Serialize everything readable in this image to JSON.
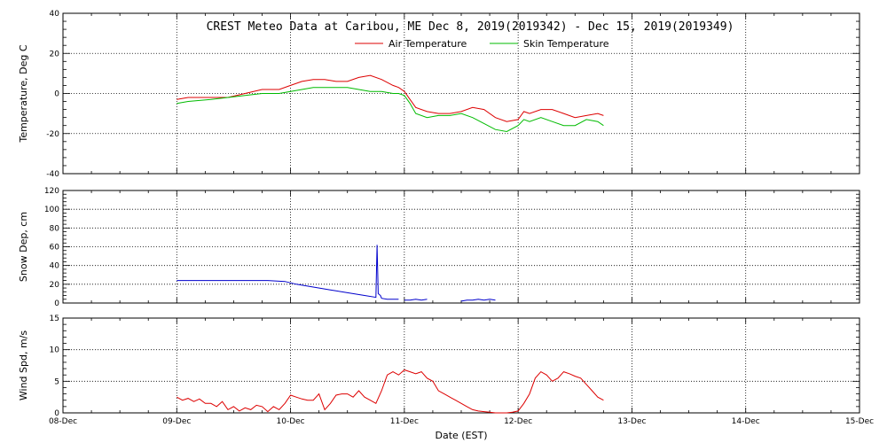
{
  "title": "CREST Meteo Data at Caribou, ME   Dec  8, 2019(2019342) - Dec 15, 2019(2019349)",
  "xlabel": "Date (EST)",
  "colors": {
    "air": "#dd0000",
    "skin": "#00bb00",
    "snow": "#0000cc",
    "wind": "#dd0000",
    "grid": "#000000"
  },
  "chart_data": [
    {
      "type": "line",
      "ylabel": "Temperature, Deg C",
      "ylim": [
        -40,
        40
      ],
      "yticks": [
        -40,
        -20,
        0,
        20,
        40
      ],
      "xlim": [
        8,
        15
      ],
      "xticks": [
        "08-Dec",
        "09-Dec",
        "10-Dec",
        "11-Dec",
        "12-Dec",
        "13-Dec",
        "14-Dec",
        "15-Dec"
      ],
      "grid": true,
      "legend": "top-center",
      "series": [
        {
          "name": "Air Temperature",
          "x": [
            9.0,
            9.1,
            9.3,
            9.45,
            9.6,
            9.75,
            9.9,
            10.0,
            10.1,
            10.2,
            10.3,
            10.4,
            10.5,
            10.6,
            10.7,
            10.8,
            10.9,
            10.95,
            11.0,
            11.05,
            11.1,
            11.2,
            11.3,
            11.4,
            11.5,
            11.6,
            11.7,
            11.8,
            11.9,
            12.0,
            12.05,
            12.1,
            12.2,
            12.3,
            12.4,
            12.5,
            12.6,
            12.7,
            12.75
          ],
          "y": [
            -3,
            -2,
            -2,
            -2,
            0,
            2,
            2,
            4,
            6,
            7,
            7,
            6,
            6,
            8,
            9,
            7,
            4,
            3,
            1,
            -3,
            -7,
            -9,
            -10,
            -10,
            -9,
            -7,
            -8,
            -12,
            -14,
            -13,
            -9,
            -10,
            -8,
            -8,
            -10,
            -12,
            -11,
            -10,
            -11
          ]
        },
        {
          "name": "Skin Temperature",
          "x": [
            9.0,
            9.1,
            9.3,
            9.45,
            9.6,
            9.75,
            9.9,
            10.0,
            10.1,
            10.2,
            10.3,
            10.4,
            10.5,
            10.6,
            10.7,
            10.8,
            10.9,
            10.95,
            11.0,
            11.05,
            11.1,
            11.2,
            11.3,
            11.4,
            11.5,
            11.6,
            11.7,
            11.8,
            11.9,
            12.0,
            12.05,
            12.1,
            12.2,
            12.3,
            12.4,
            12.5,
            12.6,
            12.7,
            12.75
          ],
          "y": [
            -5,
            -4,
            -3,
            -2,
            -1,
            0,
            0,
            1,
            2,
            3,
            3,
            3,
            3,
            2,
            1,
            1,
            0,
            0,
            -1,
            -5,
            -10,
            -12,
            -11,
            -11,
            -10,
            -12,
            -15,
            -18,
            -19,
            -16,
            -13,
            -14,
            -12,
            -14,
            -16,
            -16,
            -13,
            -14,
            -16
          ]
        }
      ]
    },
    {
      "type": "line",
      "ylabel": "Snow Dep, cm",
      "ylim": [
        0,
        120
      ],
      "yticks": [
        0,
        20,
        40,
        60,
        80,
        100,
        120
      ],
      "xlim": [
        8,
        15
      ],
      "grid": true,
      "series": [
        {
          "x": [
            9.0,
            9.2,
            9.4,
            9.6,
            9.8,
            9.95,
            10.05,
            10.2,
            10.35,
            10.5,
            10.65,
            10.75,
            10.76,
            10.77,
            10.79,
            10.8,
            10.85,
            10.9,
            10.95
          ],
          "y": [
            24,
            24,
            24,
            24,
            24,
            23,
            20,
            17,
            14,
            11,
            8,
            6,
            62,
            10,
            8,
            5,
            4,
            4,
            4
          ]
        },
        {
          "x": [
            11.0,
            11.05,
            11.1,
            11.15,
            11.2
          ],
          "y": [
            3,
            3,
            4,
            3,
            4
          ]
        },
        {
          "x": [
            11.5,
            11.55,
            11.6,
            11.65,
            11.7,
            11.75,
            11.8
          ],
          "y": [
            2,
            3,
            3,
            4,
            3,
            4,
            3
          ]
        }
      ]
    },
    {
      "type": "line",
      "ylabel": "Wind Spd, m/s",
      "ylim": [
        0,
        15
      ],
      "yticks": [
        0,
        5,
        10,
        15
      ],
      "xlim": [
        8,
        15
      ],
      "xlabel": "Date (EST)",
      "grid": true,
      "series": [
        {
          "x": [
            9.0,
            9.05,
            9.1,
            9.15,
            9.2,
            9.25,
            9.3,
            9.35,
            9.4,
            9.45,
            9.5,
            9.55,
            9.6,
            9.65,
            9.7,
            9.75,
            9.8,
            9.85,
            9.9,
            9.95,
            10.0,
            10.05,
            10.1,
            10.15,
            10.2,
            10.25,
            10.3,
            10.35,
            10.4,
            10.45,
            10.5,
            10.55,
            10.6,
            10.65,
            10.7,
            10.75,
            10.8,
            10.85,
            10.9,
            10.95,
            11.0,
            11.05,
            11.1,
            11.15,
            11.2,
            11.25,
            11.3,
            11.35,
            11.4,
            11.45,
            11.5,
            11.55,
            11.6,
            11.65,
            11.7,
            11.75,
            11.8,
            11.85,
            11.9,
            11.95,
            12.0,
            12.05,
            12.1,
            12.15,
            12.2,
            12.25,
            12.3,
            12.35,
            12.4,
            12.45,
            12.5,
            12.55,
            12.6,
            12.65,
            12.7,
            12.75
          ],
          "y": [
            2.5,
            2,
            2.3,
            1.8,
            2.2,
            1.5,
            1.5,
            1,
            1.8,
            0.5,
            1,
            0.3,
            0.8,
            0.5,
            1.2,
            1,
            0.2,
            1,
            0.5,
            1.5,
            2.8,
            2.5,
            2.2,
            2,
            2,
            3,
            0.5,
            1.5,
            2.8,
            3,
            3,
            2.5,
            3.5,
            2.5,
            2,
            1.5,
            3.5,
            6,
            6.5,
            6,
            6.8,
            6.5,
            6.2,
            6.5,
            5.5,
            5,
            3.5,
            3,
            2.5,
            2,
            1.5,
            1,
            0.5,
            0.3,
            0.2,
            0.1,
            0,
            0,
            0,
            0.1,
            0.3,
            1.5,
            3,
            5.5,
            6.5,
            6,
            5,
            5.5,
            6.5,
            6.2,
            5.8,
            5.5,
            4.5,
            3.5,
            2.5,
            2
          ]
        }
      ]
    }
  ]
}
